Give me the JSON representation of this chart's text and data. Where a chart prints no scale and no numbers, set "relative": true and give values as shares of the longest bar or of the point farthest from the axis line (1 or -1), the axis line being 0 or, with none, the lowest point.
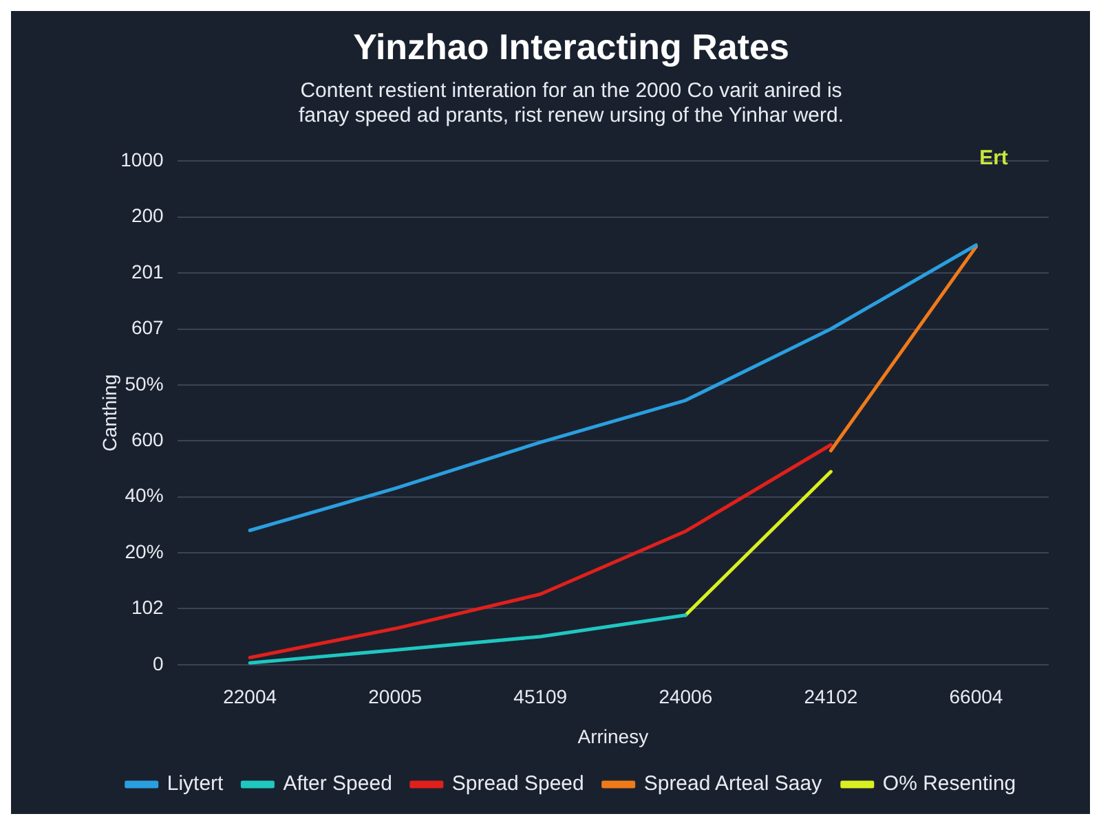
{
  "chart_data": {
    "type": "line",
    "title": "Yinzhao Interacting Rates",
    "subtitle": "Content restient interation for an the 2000 Co varit anired is fanay speed ad prants, rist renew ursing of the Yinhar werd.",
    "xlabel": "Arrinesy",
    "ylabel": "Canthing",
    "categories": [
      "22004",
      "20005",
      "45109",
      "24006",
      "24102",
      "66004"
    ],
    "relative": true,
    "series": [
      {
        "name": "Liytert",
        "color": "#2a9fe0",
        "values": [
          0.32,
          0.42,
          0.53,
          0.63,
          0.8,
          1
        ]
      },
      {
        "name": "After Speed",
        "color": "#1fc7c0",
        "values": [
          0.004,
          0.035,
          0.067,
          0.118,
          null,
          null
        ]
      },
      {
        "name": "Spread Speed",
        "color": "#e0201c",
        "values": [
          0.017,
          0.086,
          0.168,
          0.318,
          0.524,
          null
        ]
      },
      {
        "name": "Spread Arteal Saay",
        "color": "#f07a1a",
        "values": [
          null,
          null,
          null,
          null,
          0.51,
          0.996
        ]
      },
      {
        "name": "O% Resenting",
        "color": "#d8f020",
        "values": [
          null,
          null,
          null,
          0.118,
          0.46,
          null
        ]
      }
    ],
    "annotations": [
      "Ert",
      "1000",
      "200",
      "201",
      "607",
      "50%",
      "600",
      "40%",
      "20%",
      "102",
      "0"
    ],
    "grid": "y",
    "legend": "bottom",
    "marker": "none",
    "line_style": "solid"
  }
}
